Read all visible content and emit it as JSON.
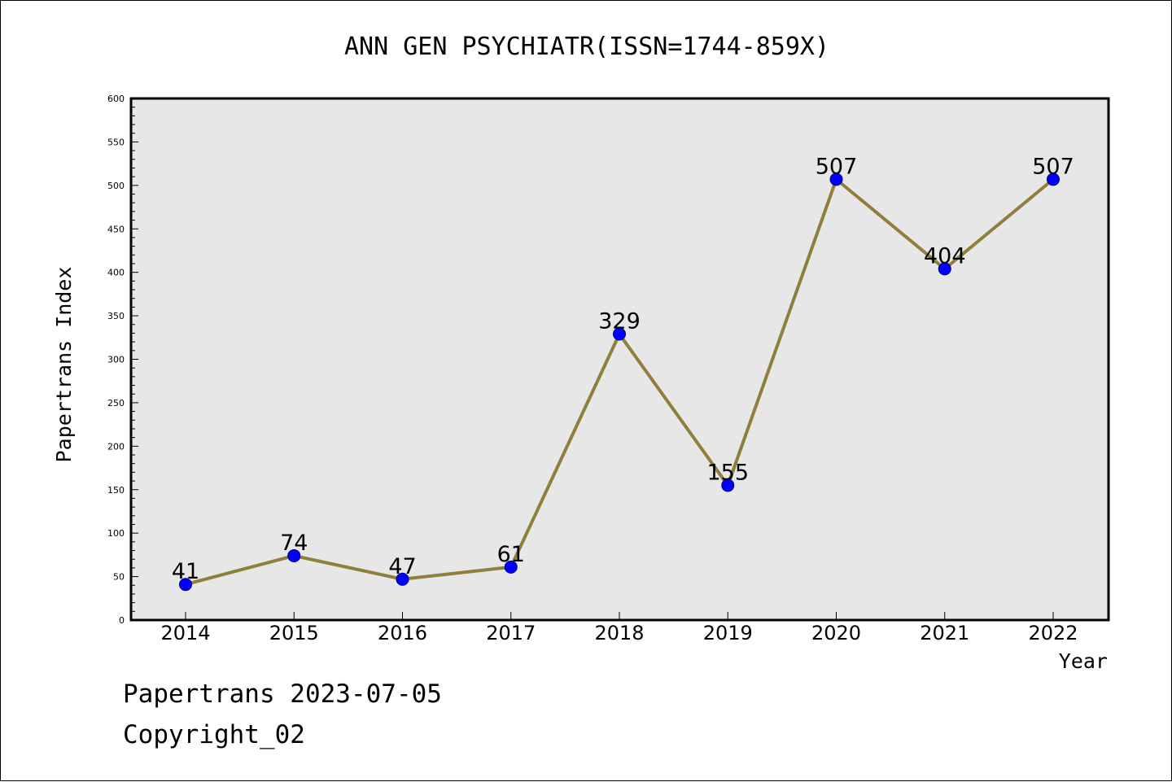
{
  "chart_data": {
    "type": "line",
    "title": "ANN GEN PSYCHIATR(ISSN=1744-859X)",
    "xlabel": "Year",
    "ylabel": "Papertrans Index",
    "categories": [
      "2014",
      "2015",
      "2016",
      "2017",
      "2018",
      "2019",
      "2020",
      "2021",
      "2022"
    ],
    "values": [
      41,
      74,
      47,
      61,
      329,
      155,
      507,
      404,
      507
    ],
    "data_labels": [
      "41",
      "74",
      "47",
      "61",
      "329",
      "155",
      "507",
      "404",
      "507"
    ],
    "ylim": [
      0,
      600
    ],
    "yticks": [
      0,
      50,
      100,
      150,
      200,
      250,
      300,
      350,
      400,
      450,
      500,
      550,
      600
    ],
    "ytick_labels": [
      "0",
      "50",
      "100",
      "150",
      "200",
      "250",
      "300",
      "350",
      "400",
      "450",
      "500",
      "550",
      "600"
    ],
    "y_minor_step": 10,
    "grid": false,
    "colors": {
      "plot_background": "#e7e7e7",
      "line": "#8f7e3c",
      "marker": "#0000ff",
      "marker_edge": "#000080"
    }
  },
  "footer": {
    "date_line": "Papertrans 2023-07-05",
    "copyright_line": "Copyright_02"
  }
}
